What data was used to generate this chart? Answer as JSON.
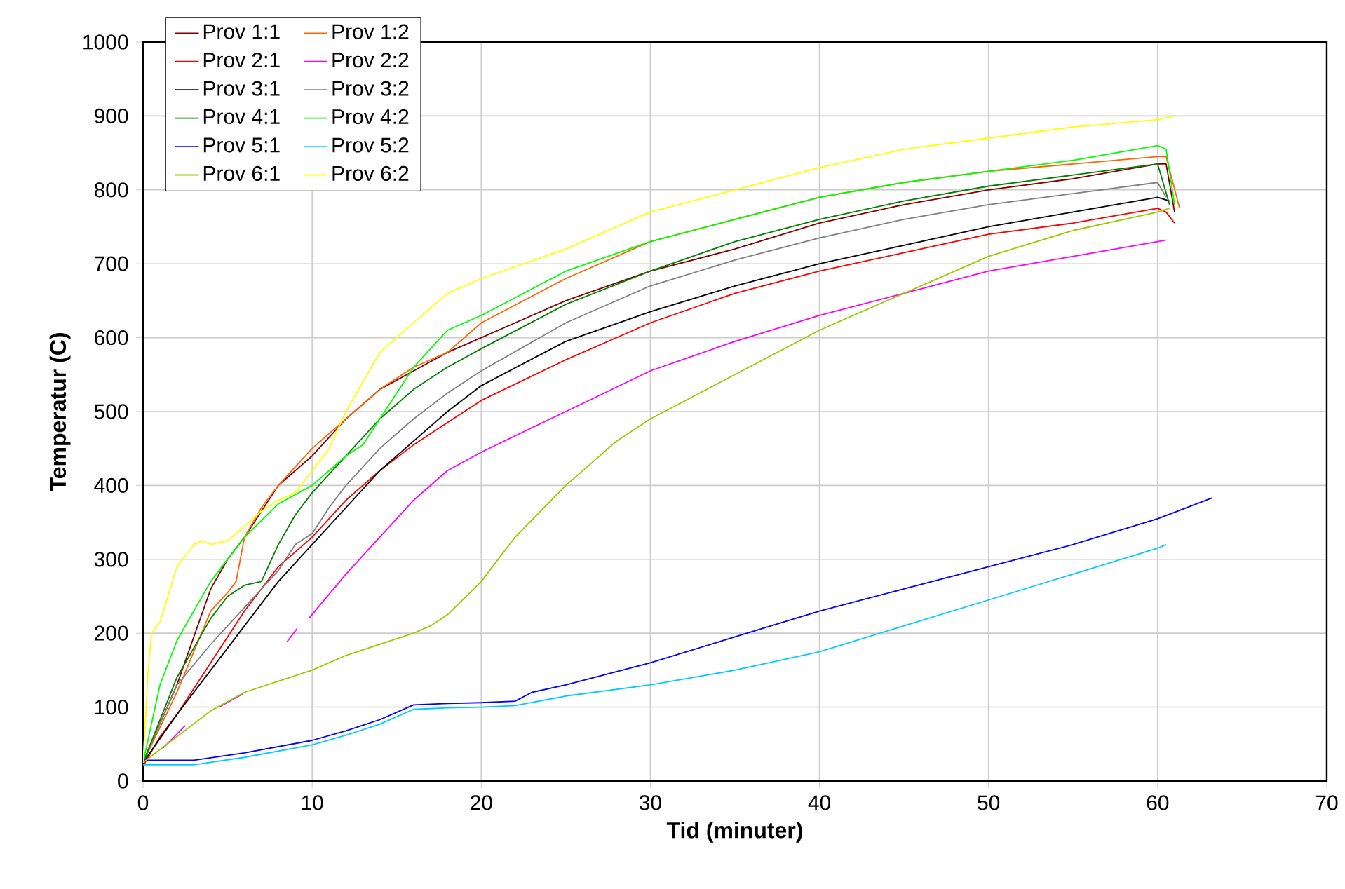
{
  "chart_data": {
    "type": "line",
    "xlabel": "Tid (minuter)",
    "ylabel": "Temperatur (C)",
    "xlim": [
      0,
      70
    ],
    "ylim": [
      0,
      1000
    ],
    "xticks": [
      0,
      10,
      20,
      30,
      40,
      50,
      60,
      70
    ],
    "yticks": [
      0,
      100,
      200,
      300,
      400,
      500,
      600,
      700,
      800,
      900,
      1000
    ],
    "grid": true,
    "legend": "top left",
    "marker": "none",
    "line_style": "solid",
    "series": [
      {
        "name": "Prov 1:1",
        "color": "#800000",
        "x": [
          0,
          2,
          4,
          5,
          6,
          8,
          10,
          12,
          14,
          16,
          18,
          20,
          25,
          30,
          35,
          40,
          45,
          50,
          55,
          60,
          60.5,
          61
        ],
        "values": [
          25,
          130,
          260,
          300,
          330,
          400,
          440,
          490,
          530,
          555,
          580,
          600,
          650,
          690,
          720,
          755,
          780,
          800,
          815,
          835,
          835,
          770
        ]
      },
      {
        "name": "Prov 1:2",
        "color": "#ff6600",
        "x": [
          0,
          2,
          4,
          5,
          5.5,
          6,
          7,
          8,
          10,
          12,
          14,
          16,
          18,
          20,
          25,
          30,
          35,
          40,
          45,
          50,
          55,
          60,
          60.5,
          61.3
        ],
        "values": [
          25,
          120,
          230,
          255,
          270,
          330,
          370,
          400,
          450,
          490,
          530,
          560,
          580,
          620,
          680,
          730,
          760,
          790,
          810,
          825,
          835,
          845,
          845,
          775
        ]
      },
      {
        "name": "Prov 2:1",
        "color": "#ff0000",
        "x": [
          0,
          1,
          2,
          4,
          6,
          8,
          10,
          12,
          14,
          16,
          18,
          20,
          25,
          30,
          35,
          40,
          45,
          50,
          55,
          60,
          60.5,
          61
        ],
        "values": [
          20,
          60,
          90,
          160,
          230,
          290,
          330,
          380,
          420,
          455,
          485,
          515,
          570,
          620,
          660,
          690,
          715,
          740,
          755,
          775,
          770,
          755
        ]
      },
      {
        "name": "Prov 2:2",
        "color": "#ff00ff",
        "x": [
          1.2,
          2.5,
          3.5,
          4.5,
          5.9,
          7,
          8.5,
          9.1,
          9.4,
          9.8,
          12,
          14,
          16,
          18,
          20,
          25,
          30,
          35,
          40,
          45,
          50,
          55,
          60,
          60.5
        ],
        "values": [
          45,
          75,
          null,
          100,
          118,
          null,
          188,
          206,
          null,
          220,
          280,
          330,
          380,
          420,
          445,
          500,
          555,
          595,
          630,
          660,
          690,
          710,
          730,
          732
        ]
      },
      {
        "name": "Prov 3:1",
        "color": "#000000",
        "x": [
          0,
          2,
          4,
          6,
          8,
          10,
          12,
          14,
          16,
          18,
          20,
          25,
          30,
          35,
          40,
          45,
          50,
          55,
          60,
          60.7
        ],
        "values": [
          25,
          90,
          150,
          210,
          270,
          320,
          370,
          420,
          460,
          500,
          535,
          595,
          635,
          670,
          700,
          725,
          750,
          770,
          790,
          785
        ]
      },
      {
        "name": "Prov 3:2",
        "color": "#808080",
        "x": [
          0,
          2,
          4,
          6,
          8,
          9,
          10,
          11,
          12,
          14,
          16,
          18,
          20,
          25,
          30,
          35,
          40,
          45,
          50,
          55,
          60,
          60.5
        ],
        "values": [
          25,
          130,
          185,
          235,
          285,
          320,
          335,
          370,
          400,
          450,
          490,
          525,
          555,
          620,
          670,
          705,
          735,
          760,
          780,
          795,
          810,
          790
        ]
      },
      {
        "name": "Prov 4:1",
        "color": "#008000",
        "x": [
          0,
          2,
          4,
          5,
          6,
          7,
          8,
          9,
          10,
          12,
          14,
          16,
          18,
          20,
          25,
          30,
          35,
          40,
          45,
          50,
          55,
          60,
          60.7
        ],
        "values": [
          25,
          140,
          220,
          250,
          265,
          270,
          320,
          360,
          390,
          440,
          490,
          530,
          560,
          585,
          645,
          690,
          730,
          760,
          785,
          805,
          820,
          835,
          780
        ]
      },
      {
        "name": "Prov 4:2",
        "color": "#00ff00",
        "x": [
          0,
          1,
          2,
          4,
          6,
          8,
          10,
          12,
          13,
          14,
          16,
          18,
          20,
          25,
          30,
          35,
          40,
          45,
          50,
          55,
          60,
          60.5,
          61
        ],
        "values": [
          25,
          130,
          190,
          270,
          330,
          375,
          400,
          440,
          455,
          490,
          560,
          610,
          630,
          690,
          730,
          760,
          790,
          810,
          825,
          840,
          860,
          855,
          780
        ]
      },
      {
        "name": "Prov 5:1",
        "color": "#0000ff",
        "x": [
          0,
          3,
          6,
          10,
          12,
          14,
          16,
          18,
          20,
          22,
          23,
          25,
          30,
          35,
          40,
          45,
          50,
          55,
          60,
          63.2
        ],
        "values": [
          28,
          28,
          38,
          55,
          68,
          83,
          103,
          105,
          106,
          108,
          120,
          130,
          160,
          195,
          230,
          260,
          290,
          320,
          355,
          383
        ]
      },
      {
        "name": "Prov 5:2",
        "color": "#00ccff",
        "x": [
          0,
          3,
          6,
          10,
          12,
          14,
          16,
          18,
          20,
          22,
          25,
          30,
          35,
          40,
          45,
          50,
          55,
          60,
          60.5
        ],
        "values": [
          22,
          22,
          32,
          49,
          62,
          77,
          97,
          99,
          100,
          102,
          115,
          130,
          150,
          175,
          210,
          245,
          280,
          315,
          320
        ]
      },
      {
        "name": "Prov 6:1",
        "color": "#99cc00",
        "x": [
          0,
          2,
          4,
          6,
          8,
          10,
          12,
          14,
          16,
          17,
          18,
          20,
          22,
          25,
          28,
          30,
          35,
          40,
          45,
          50,
          55,
          60,
          60.7
        ],
        "values": [
          25,
          60,
          95,
          120,
          135,
          150,
          170,
          185,
          200,
          210,
          225,
          270,
          330,
          400,
          460,
          490,
          550,
          610,
          660,
          710,
          745,
          770,
          775
        ]
      },
      {
        "name": "Prov 6:2",
        "color": "#ffff00",
        "x": [
          0,
          0.3,
          0.5,
          1,
          2,
          3,
          3.5,
          4,
          5,
          6,
          7,
          8,
          9,
          10,
          11,
          12,
          14,
          16,
          18,
          20,
          25,
          30,
          35,
          40,
          45,
          50,
          55,
          60,
          61
        ],
        "values": [
          25,
          150,
          200,
          215,
          290,
          320,
          325,
          320,
          325,
          345,
          365,
          380,
          390,
          420,
          450,
          500,
          580,
          620,
          660,
          680,
          720,
          770,
          800,
          830,
          855,
          870,
          885,
          895,
          900
        ]
      }
    ]
  }
}
